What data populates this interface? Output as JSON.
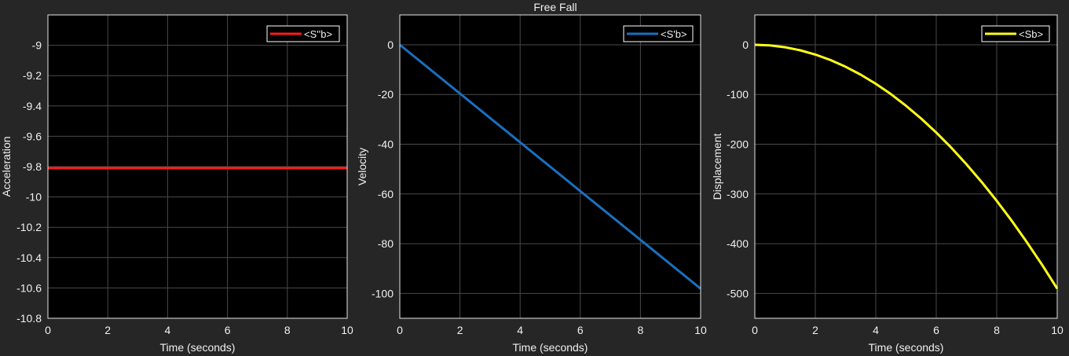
{
  "figure_title": "Free Fall",
  "colors": {
    "figure_background": "#262626",
    "axes_background": "#000000",
    "grid": "#4a4a4a",
    "text": "#f0f0f0"
  },
  "chart_data": [
    {
      "type": "line",
      "title": "",
      "xlabel": "Time (seconds)",
      "ylabel": "Acceleration",
      "xlim": [
        0,
        10
      ],
      "ylim": [
        -10.8,
        -8.8
      ],
      "xticks": [
        0,
        2,
        4,
        6,
        8,
        10
      ],
      "yticks": [
        -10.8,
        -10.6,
        -10.4,
        -10.2,
        -10,
        -9.8,
        -9.6,
        -9.4,
        -9.2,
        -9
      ],
      "grid": true,
      "legend_position": "top-right",
      "series": [
        {
          "name": "<S''b>",
          "color": "#ff1a1a",
          "x": [
            0,
            10
          ],
          "y": [
            -9.81,
            -9.81
          ]
        }
      ]
    },
    {
      "type": "line",
      "title": "",
      "xlabel": "Time (seconds)",
      "ylabel": "Velocity",
      "xlim": [
        0,
        10
      ],
      "ylim": [
        -110,
        12
      ],
      "xticks": [
        0,
        2,
        4,
        6,
        8,
        10
      ],
      "yticks": [
        -100,
        -80,
        -60,
        -40,
        -20,
        0
      ],
      "grid": true,
      "legend_position": "top-right",
      "series": [
        {
          "name": "<S'b>",
          "color": "#1a6fbf",
          "x": [
            0,
            10
          ],
          "y": [
            0,
            -98.1
          ]
        }
      ]
    },
    {
      "type": "line",
      "title": "",
      "xlabel": "Time (seconds)",
      "ylabel": "Displacement",
      "xlim": [
        0,
        10
      ],
      "ylim": [
        -550,
        60
      ],
      "xticks": [
        0,
        2,
        4,
        6,
        8,
        10
      ],
      "yticks": [
        -500,
        -400,
        -300,
        -200,
        -100,
        0
      ],
      "grid": true,
      "legend_position": "top-right",
      "series": [
        {
          "name": "<Sb>",
          "color": "#ffff1a",
          "x": [
            0,
            0.5,
            1,
            1.5,
            2,
            2.5,
            3,
            3.5,
            4,
            4.5,
            5,
            5.5,
            6,
            6.5,
            7,
            7.5,
            8,
            8.5,
            9,
            9.5,
            10
          ],
          "y": [
            0,
            -1.23,
            -4.91,
            -11.04,
            -19.62,
            -30.66,
            -44.15,
            -60.09,
            -78.48,
            -99.33,
            -122.63,
            -148.38,
            -176.58,
            -207.23,
            -240.35,
            -275.91,
            -313.92,
            -354.39,
            -397.31,
            -442.68,
            -490.5
          ]
        }
      ]
    }
  ]
}
